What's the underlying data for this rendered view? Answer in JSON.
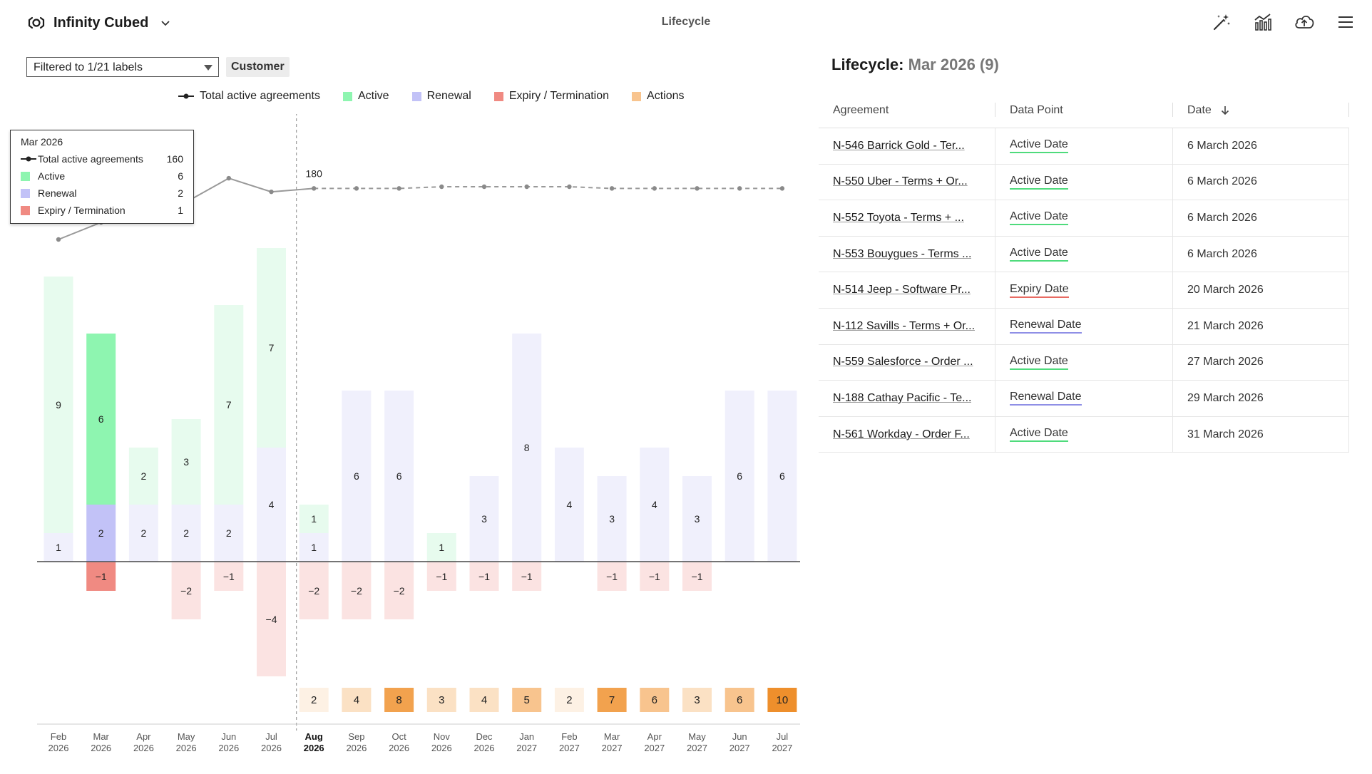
{
  "header": {
    "brand": "Infinity Cubed",
    "title": "Lifecycle",
    "tools": [
      "magic-wand-icon",
      "chart-icon",
      "cloud-upload-icon",
      "menu-icon"
    ]
  },
  "filter": {
    "select_value": "Filtered to 1/21 labels",
    "chip": "Customer"
  },
  "legend": {
    "total": "Total active agreements",
    "active": "Active",
    "renewal": "Renewal",
    "expiry": "Expiry / Termination",
    "actions": "Actions"
  },
  "colors": {
    "active": "#8ef5b0",
    "active_light": "#e7fbee",
    "renewal": "#c2c2f7",
    "renewal_light": "#f0f0fc",
    "expiry": "#f08a82",
    "expiry_light": "#fbe3e2",
    "action_ramp": [
      "#fdf1e4",
      "#fbe1c4",
      "#f8c48e",
      "#f2a24e",
      "#ee8f2c"
    ]
  },
  "tooltip": {
    "month": "Mar 2026",
    "rows": [
      {
        "label": "Total active agreements",
        "value": "160",
        "kind": "line"
      },
      {
        "label": "Active",
        "value": "6",
        "kind": "active"
      },
      {
        "label": "Renewal",
        "value": "2",
        "kind": "renewal"
      },
      {
        "label": "Expiry / Termination",
        "value": "1",
        "kind": "expiry"
      }
    ]
  },
  "chart_data": {
    "type": "bar",
    "months": [
      "Feb",
      "Mar",
      "Apr",
      "May",
      "Jun",
      "Jul",
      "Aug",
      "Sep",
      "Oct",
      "Nov",
      "Dec",
      "Jan",
      "Feb",
      "Mar",
      "Apr",
      "May",
      "Jun",
      "Jul"
    ],
    "years": [
      "2026",
      "2026",
      "2026",
      "2026",
      "2026",
      "2026",
      "2026",
      "2026",
      "2026",
      "2026",
      "2026",
      "2027",
      "2027",
      "2027",
      "2027",
      "2027",
      "2027",
      "2027"
    ],
    "current_index": 6,
    "selected_index": 1,
    "series": [
      {
        "name": "Active",
        "values": [
          9,
          6,
          2,
          3,
          7,
          7,
          1,
          0,
          0,
          1,
          0,
          0,
          0,
          0,
          0,
          0,
          0,
          0
        ]
      },
      {
        "name": "Renewal",
        "values": [
          1,
          2,
          2,
          2,
          2,
          4,
          1,
          6,
          6,
          0,
          3,
          8,
          4,
          3,
          4,
          3,
          6,
          6
        ]
      },
      {
        "name": "Expiry / Termination",
        "values": [
          0,
          -1,
          0,
          -2,
          -1,
          -4,
          -2,
          -2,
          -2,
          -1,
          -1,
          -1,
          0,
          -1,
          -1,
          -1,
          0,
          0
        ]
      },
      {
        "name": "Actions",
        "values": [
          null,
          null,
          null,
          null,
          null,
          null,
          2,
          4,
          8,
          3,
          4,
          5,
          2,
          7,
          6,
          3,
          6,
          10
        ]
      },
      {
        "name": "Total active agreements",
        "values": [
          150,
          160,
          164,
          172,
          186,
          178,
          180,
          180,
          180,
          181,
          181,
          181,
          181,
          180,
          180,
          180,
          180,
          180
        ]
      }
    ],
    "total_label": {
      "index": 6,
      "text": "180"
    }
  },
  "table": {
    "heading": "Lifecycle:",
    "heading_sub": "Mar 2026 (9)",
    "columns": [
      "Agreement",
      "Data Point",
      "Date"
    ],
    "rows": [
      {
        "agreement": "N-546 Barrick Gold - Ter...",
        "point": "Active Date",
        "kind": "active",
        "date": "6 March 2026"
      },
      {
        "agreement": "N-550 Uber - Terms + Or...",
        "point": "Active Date",
        "kind": "active",
        "date": "6 March 2026"
      },
      {
        "agreement": "N-552 Toyota - Terms + ...",
        "point": "Active Date",
        "kind": "active",
        "date": "6 March 2026"
      },
      {
        "agreement": "N-553 Bouygues - Terms ...",
        "point": "Active Date",
        "kind": "active",
        "date": "6 March 2026"
      },
      {
        "agreement": "N-514 Jeep - Software Pr...",
        "point": "Expiry Date",
        "kind": "expiry",
        "date": "20 March 2026"
      },
      {
        "agreement": "N-112 Savills - Terms + Or...",
        "point": "Renewal Date",
        "kind": "renewal",
        "date": "21 March 2026"
      },
      {
        "agreement": "N-559 Salesforce - Order ...",
        "point": "Active Date",
        "kind": "active",
        "date": "27 March 2026"
      },
      {
        "agreement": "N-188 Cathay Pacific - Te...",
        "point": "Renewal Date",
        "kind": "renewal",
        "date": "29 March 2026"
      },
      {
        "agreement": "N-561 Workday - Order F...",
        "point": "Active Date",
        "kind": "active",
        "date": "31 March 2026"
      }
    ]
  }
}
